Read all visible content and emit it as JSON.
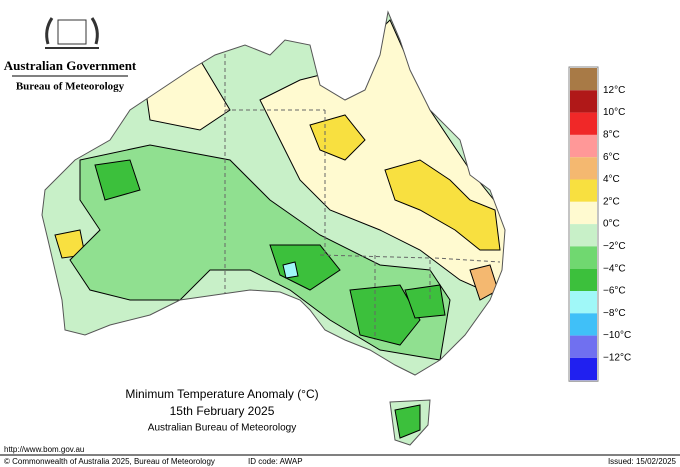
{
  "header": {
    "government": "Australian Government",
    "agency": "Bureau of Meteorology"
  },
  "map": {
    "title": "Minimum Temperature Anomaly (°C)",
    "date": "15th February 2025",
    "source": "Australian Bureau of Meteorology"
  },
  "legend": {
    "colors": [
      "#a87a46",
      "#b01818",
      "#f02828",
      "#ff9898",
      "#f4b870",
      "#f8e040",
      "#fffad0",
      "#c8f0c8",
      "#70d870",
      "#3cc03c",
      "#a0f8f8",
      "#40c0f8",
      "#7070f0",
      "#2020f0"
    ],
    "labels": [
      "12°C",
      "10°C",
      "8°C",
      "6°C",
      "4°C",
      "2°C",
      "0°C",
      "−2°C",
      "−4°C",
      "−6°C",
      "−8°C",
      "−10°C",
      "−12°C"
    ]
  },
  "footer": {
    "url": "http://www.bom.gov.au",
    "copyright": "© Commonwealth of Australia 2025, Bureau of Meteorology",
    "id_code": "ID code: AWAP",
    "issued": "Issued: 15/02/2025"
  }
}
